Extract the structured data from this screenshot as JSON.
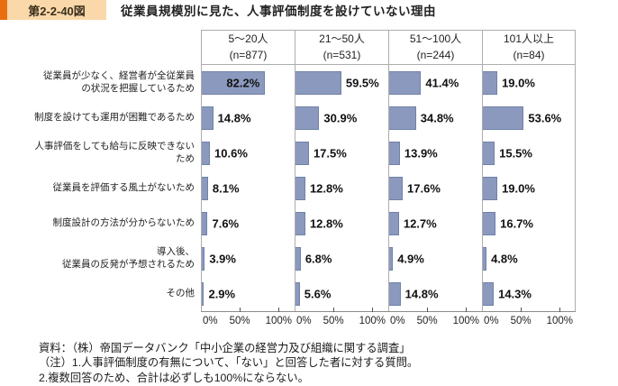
{
  "figure": {
    "tag": "第2-2-40図",
    "title": "従業員規模別に見た、人事評価制度を設けていない理由"
  },
  "chart_data": {
    "type": "bar",
    "orientation": "horizontal",
    "unit": "%",
    "title": "従業員規模別に見た、人事評価制度を設けていない理由",
    "categories": [
      "従業員が少なく、経営者が全従業員\nの状況を把握しているため",
      "制度を設けても運用が困難であるため",
      "人事評価をしても給与に反映できない\nため",
      "従業員を評価する風土がないため",
      "制度設計の方法が分からないため",
      "導入後、\n従業員の反発が予想されるため",
      "その他"
    ],
    "panels": [
      {
        "header": "5〜20人",
        "n": "(n=877)",
        "values": [
          82.2,
          14.8,
          10.6,
          8.1,
          7.6,
          3.9,
          2.9
        ]
      },
      {
        "header": "21〜50人",
        "n": "(n=531)",
        "values": [
          59.5,
          30.9,
          17.5,
          12.8,
          12.8,
          6.8,
          5.6
        ]
      },
      {
        "header": "51〜100人",
        "n": "(n=244)",
        "values": [
          41.4,
          34.8,
          13.9,
          17.6,
          12.7,
          4.9,
          14.8
        ]
      },
      {
        "header": "101人以上",
        "n": "(n=84)",
        "values": [
          19.0,
          53.6,
          15.5,
          19.0,
          16.7,
          4.8,
          14.3
        ]
      }
    ],
    "x_axis": {
      "ticks": [
        "0%",
        "50%",
        "100%"
      ],
      "min": 0,
      "max": 120,
      "grid": false
    },
    "legend_position": "none"
  },
  "notes": {
    "source": "資料：（株）帝国データバンク「中小企業の経営力及び組織に関する調査」",
    "note1": "（注）1.人事評価制度の有無について、「ない」と回答した者に対する質問。",
    "note2": "2.複数回答のため、合計は必ずしも100%にならない。"
  },
  "colors": {
    "bar_fill": "#8B99BE",
    "bar_border": "#7082A8",
    "accent_orange": "#E86E0F",
    "tag_bg": "#FAD8A9",
    "grid_border": "#ADADAD",
    "axis_line": "#8C8C8C"
  }
}
